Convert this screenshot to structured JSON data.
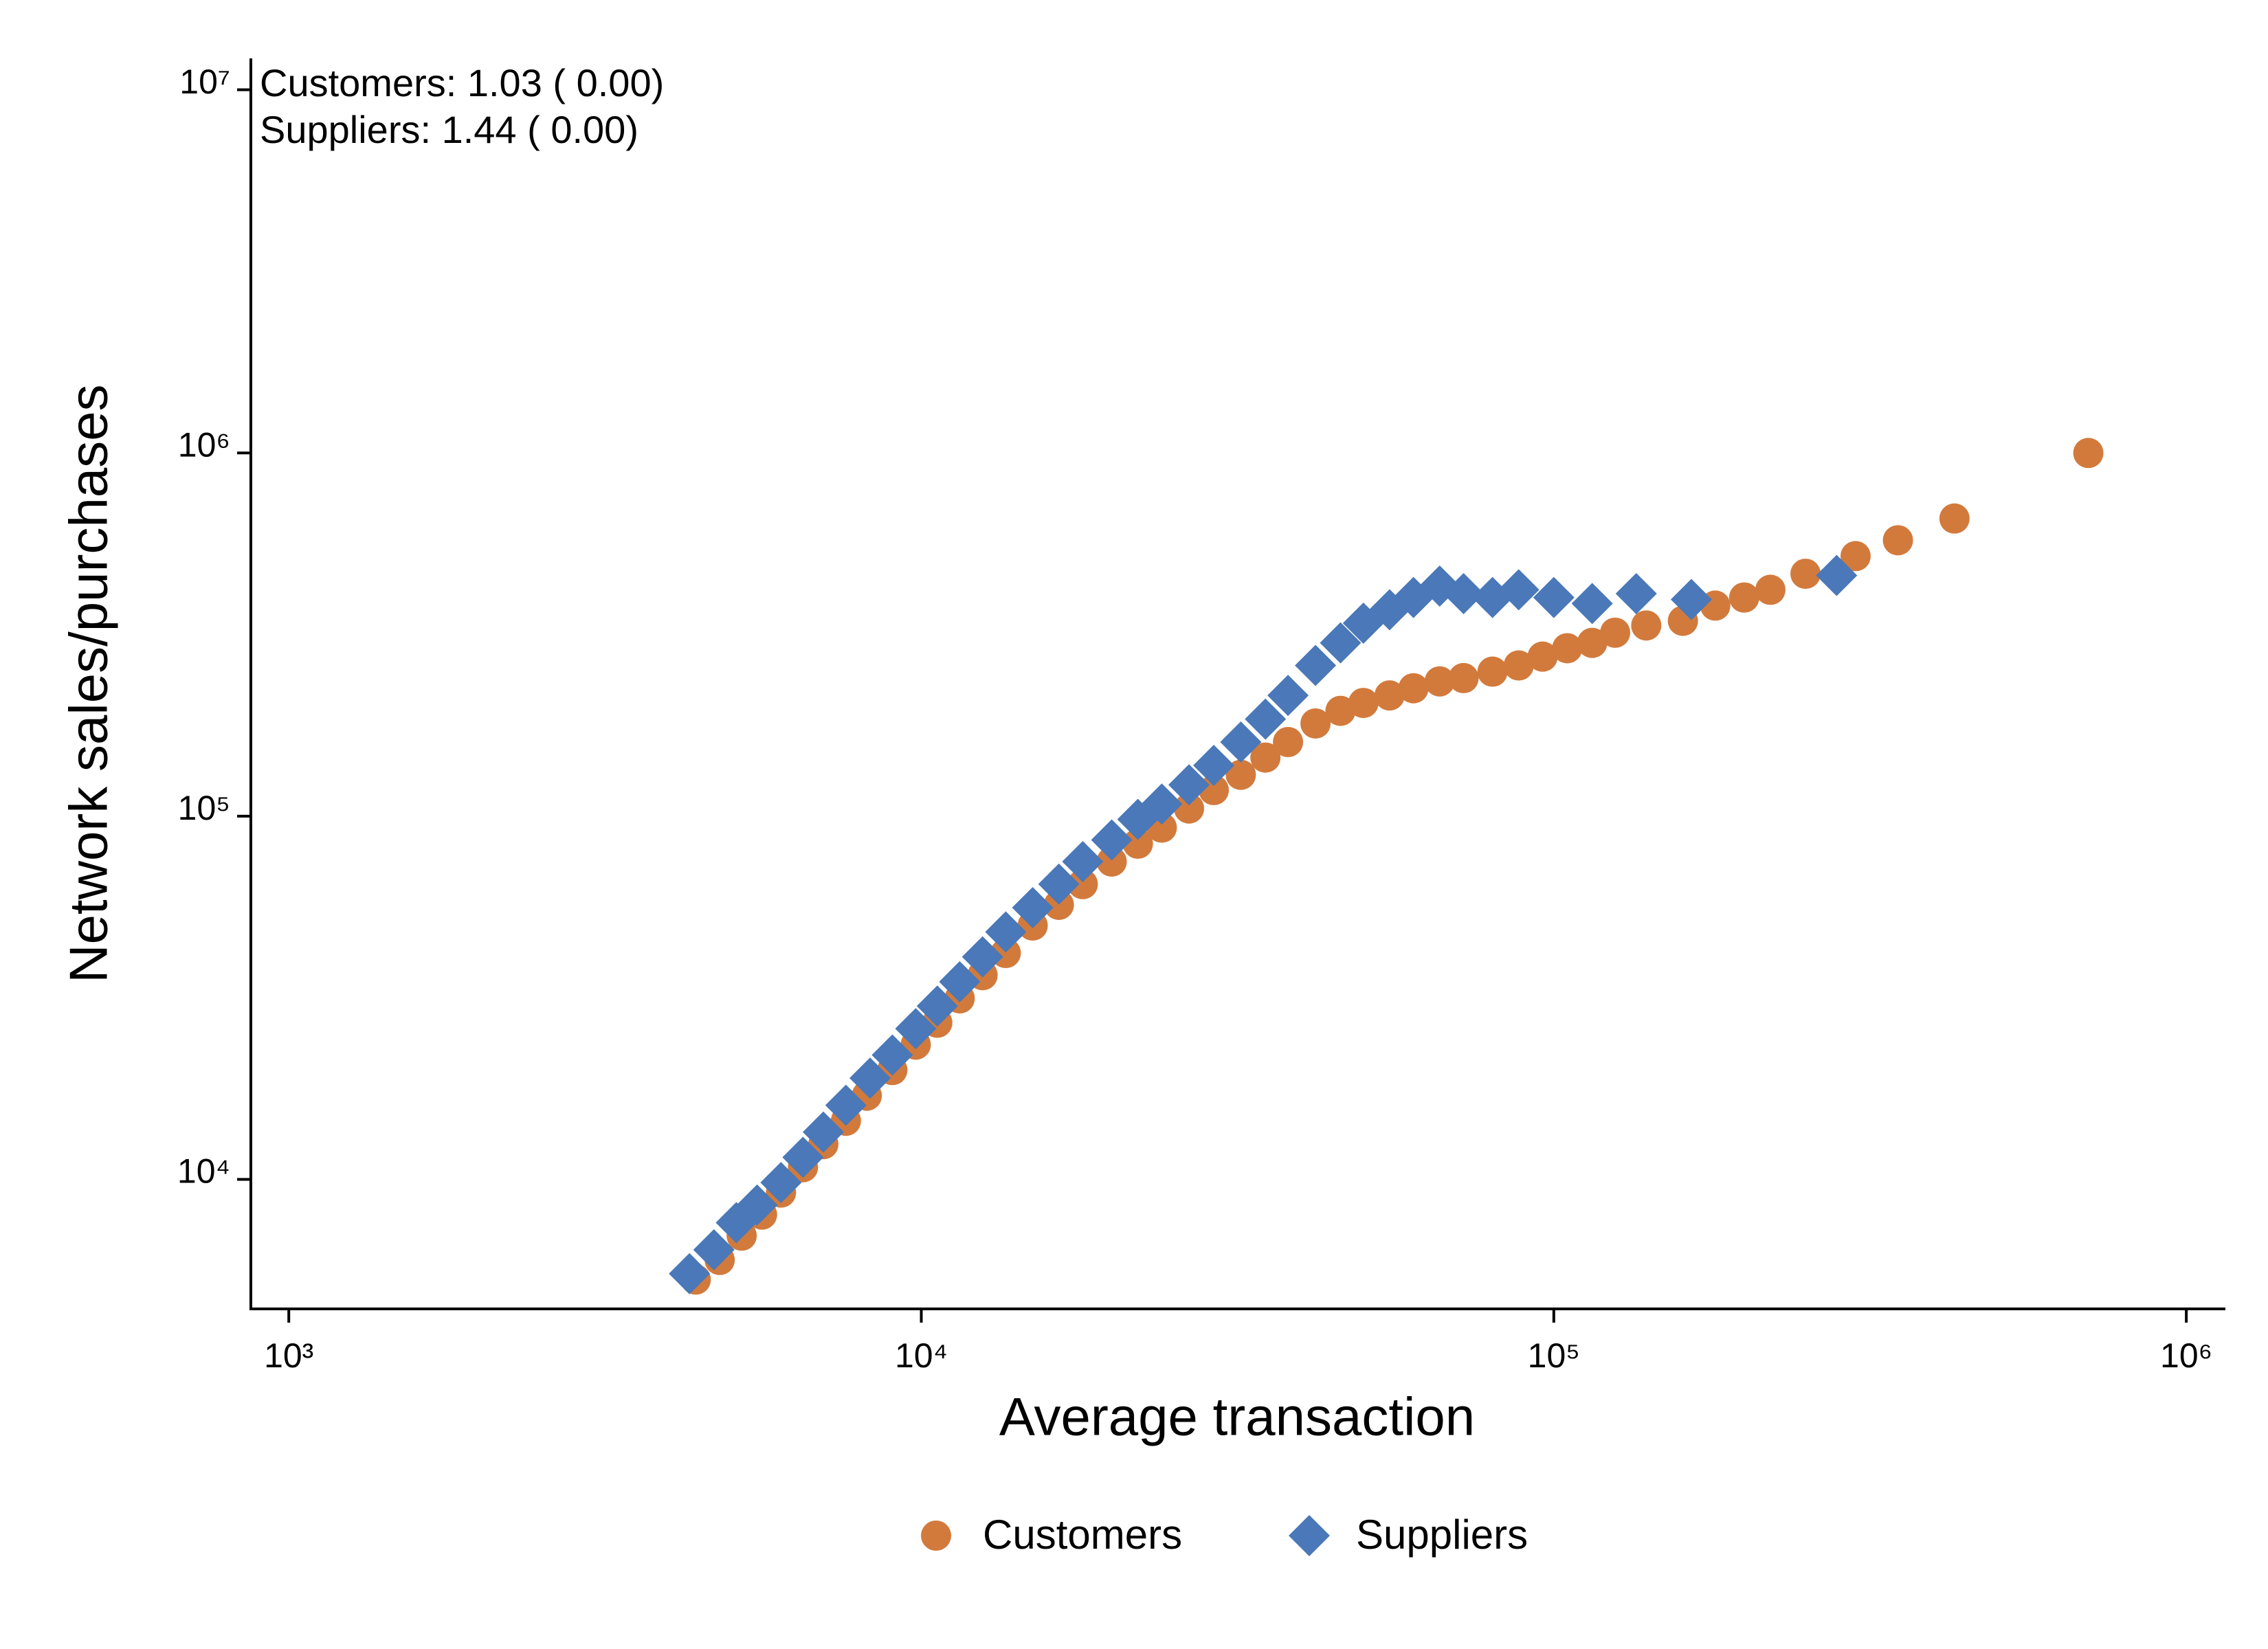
{
  "chart_data": {
    "type": "scatter",
    "x_label": "Average transaction",
    "y_label": "Network sales/purchases",
    "annotations": [
      "Customers:  1.03 ( 0.00)",
      "Suppliers:  1.44 ( 0.00)"
    ],
    "xscale": "log",
    "yscale": "log",
    "xlim": [
      871,
      1150000
    ],
    "ylim": [
      4400,
      12200000
    ],
    "xticks": [
      {
        "value": 1000,
        "label": "10³"
      },
      {
        "value": 10000,
        "label": "10⁴"
      },
      {
        "value": 100000,
        "label": "10⁵"
      },
      {
        "value": 1000000,
        "label": "10⁶"
      }
    ],
    "yticks": [
      {
        "value": 10000,
        "label": "10⁴"
      },
      {
        "value": 100000,
        "label": "10⁵"
      },
      {
        "value": 1000000,
        "label": "10⁶"
      },
      {
        "value": 10000000,
        "label": "10⁷"
      }
    ],
    "series": [
      {
        "name": "Customers",
        "color": "#d27a3c",
        "marker": "circle",
        "x": [
          4400,
          4800,
          5200,
          5600,
          6000,
          6500,
          7000,
          7600,
          8200,
          9000,
          9800,
          10600,
          11500,
          12500,
          13600,
          15000,
          16500,
          18000,
          20000,
          22000,
          24000,
          26500,
          29000,
          32000,
          35000,
          38000,
          42000,
          46000,
          50000,
          55000,
          60000,
          66000,
          72000,
          80000,
          88000,
          96000,
          105000,
          115000,
          125000,
          140000,
          160000,
          180000,
          200000,
          220000,
          250000,
          300000,
          350000,
          430000,
          700000
        ],
        "values": [
          5300,
          6000,
          7000,
          8000,
          9200,
          10800,
          12500,
          14500,
          17000,
          20000,
          23500,
          27000,
          31500,
          36500,
          42000,
          50000,
          57000,
          65000,
          75000,
          84000,
          93000,
          105000,
          118000,
          130000,
          145000,
          160000,
          180000,
          195000,
          205000,
          215000,
          225000,
          235000,
          240000,
          250000,
          260000,
          275000,
          290000,
          300000,
          320000,
          335000,
          345000,
          380000,
          400000,
          420000,
          465000,
          520000,
          575000,
          660000,
          1000000
        ]
      },
      {
        "name": "Suppliers",
        "color": "#4a78b8",
        "marker": "diamond",
        "x": [
          4300,
          4700,
          5100,
          5500,
          6000,
          6500,
          7000,
          7600,
          8300,
          9000,
          9800,
          10600,
          11500,
          12500,
          13600,
          15000,
          16500,
          18000,
          20000,
          22000,
          24000,
          26500,
          29000,
          32000,
          35000,
          38000,
          42000,
          46000,
          50000,
          55000,
          60000,
          66000,
          72000,
          80000,
          88000,
          100000,
          115000,
          135000,
          165000,
          280000
        ],
        "values": [
          5500,
          6400,
          7600,
          8500,
          9800,
          11500,
          13500,
          16000,
          19000,
          22000,
          26000,
          30000,
          35000,
          41000,
          48000,
          56000,
          65000,
          75000,
          86000,
          98000,
          108000,
          122000,
          138000,
          160000,
          185000,
          215000,
          260000,
          300000,
          340000,
          370000,
          400000,
          430000,
          410000,
          400000,
          420000,
          400000,
          385000,
          410000,
          395000,
          460000
        ]
      }
    ]
  }
}
